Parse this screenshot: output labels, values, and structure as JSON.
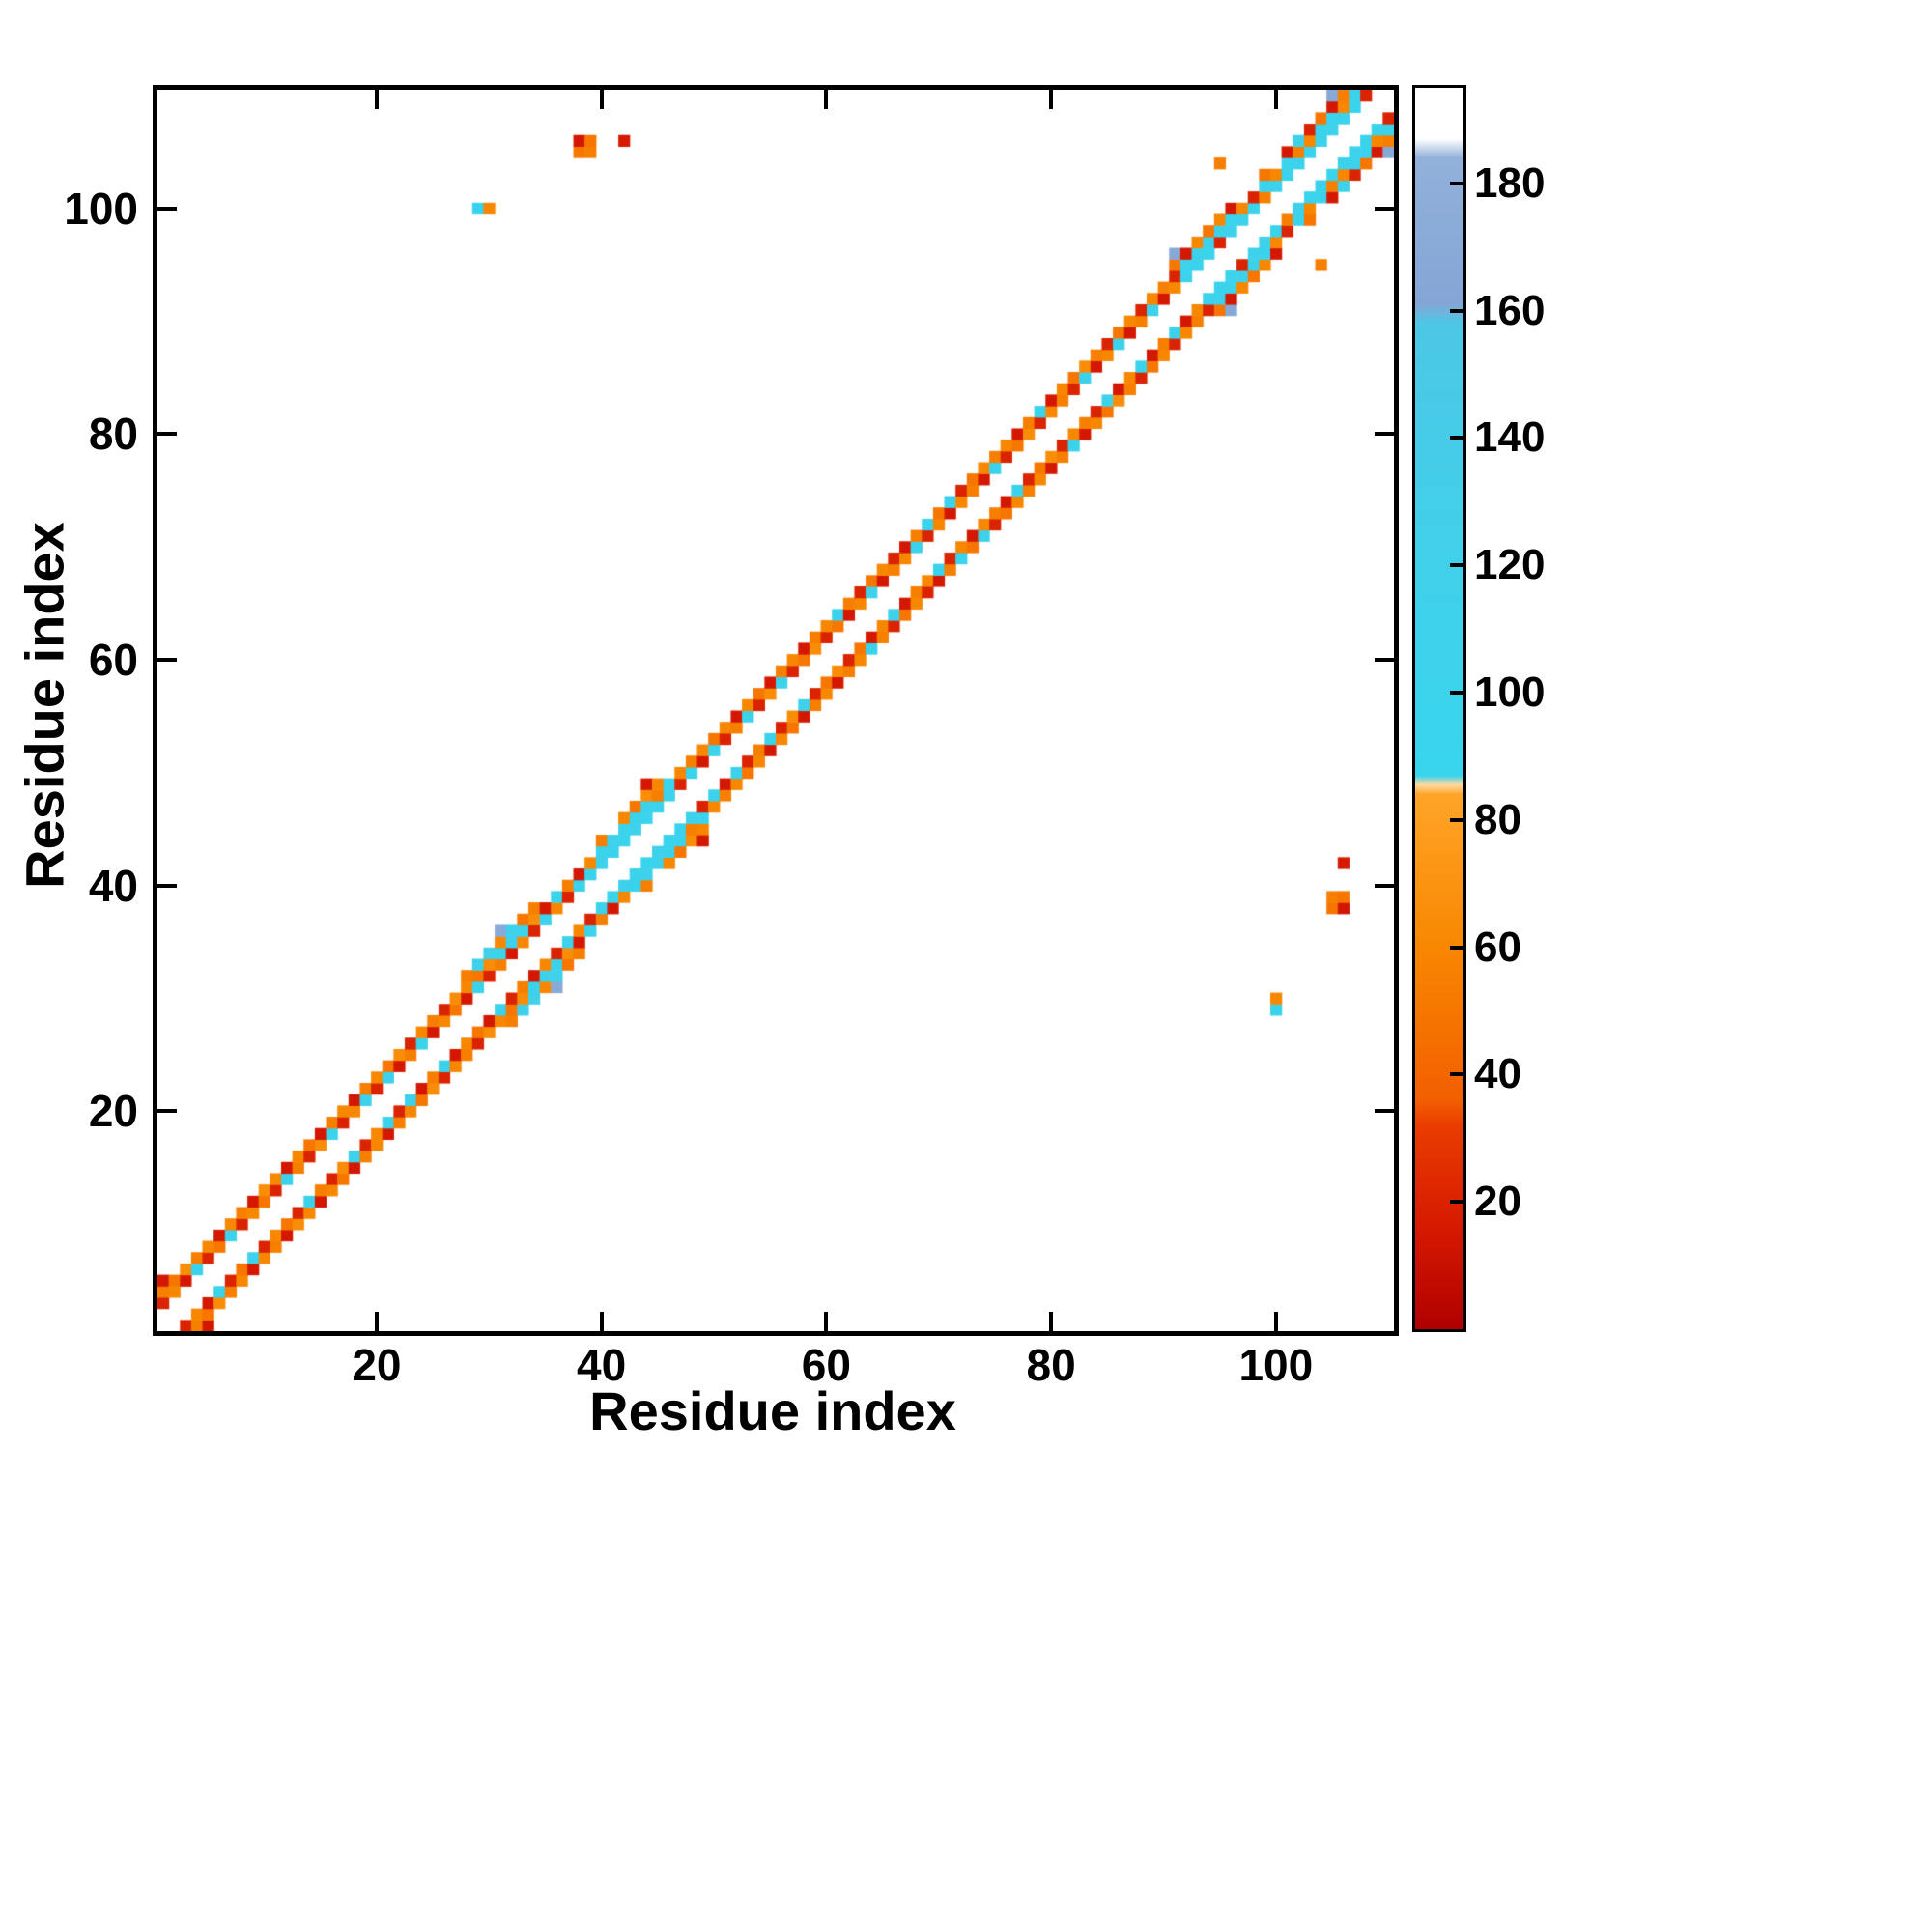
{
  "chart_data": {
    "type": "heatmap",
    "title": "",
    "xlabel": "Residue index",
    "ylabel": "Residue index",
    "x_range": [
      0.5,
      110.5
    ],
    "y_range": [
      0.5,
      110.5
    ],
    "x_ticks": [
      20,
      40,
      60,
      80,
      100
    ],
    "y_ticks": [
      20,
      40,
      60,
      80,
      100
    ],
    "grid": false,
    "background_color": "#ffffff",
    "symmetric": true,
    "colorbar": {
      "range": [
        0,
        195
      ],
      "ticks": [
        20,
        40,
        60,
        80,
        100,
        120,
        140,
        160,
        180
      ],
      "stops": [
        [
          0,
          "#b00000"
        ],
        [
          15,
          "#d41800"
        ],
        [
          32,
          "#ea3c00"
        ],
        [
          36,
          "#f25f00"
        ],
        [
          60,
          "#f88700"
        ],
        [
          84,
          "#ffa428"
        ],
        [
          85.5,
          "#ffd9a0"
        ],
        [
          87,
          "#38d4ee"
        ],
        [
          120,
          "#40d0ea"
        ],
        [
          158,
          "#4cc8e6"
        ],
        [
          161,
          "#84a6d6"
        ],
        [
          184,
          "#92b0da"
        ],
        [
          187,
          "#ffffff"
        ],
        [
          195,
          "#ffffff"
        ]
      ]
    },
    "points": [
      [
        1,
        3,
        20
      ],
      [
        1,
        4,
        55
      ],
      [
        1,
        5,
        15
      ],
      [
        2,
        4,
        60
      ],
      [
        2,
        5,
        50
      ],
      [
        3,
        5,
        15
      ],
      [
        3,
        6,
        65
      ],
      [
        4,
        6,
        100
      ],
      [
        4,
        7,
        55
      ],
      [
        5,
        7,
        20
      ],
      [
        5,
        8,
        60
      ],
      [
        6,
        8,
        50
      ],
      [
        6,
        9,
        15
      ],
      [
        7,
        9,
        110
      ],
      [
        7,
        10,
        60
      ],
      [
        8,
        10,
        20
      ],
      [
        8,
        11,
        55
      ],
      [
        9,
        11,
        60
      ],
      [
        9,
        12,
        15
      ],
      [
        10,
        12,
        50
      ],
      [
        10,
        13,
        65
      ],
      [
        11,
        13,
        20
      ],
      [
        11,
        14,
        60
      ],
      [
        12,
        14,
        105
      ],
      [
        12,
        15,
        15
      ],
      [
        13,
        15,
        55
      ],
      [
        13,
        16,
        60
      ],
      [
        14,
        16,
        20
      ],
      [
        14,
        17,
        50
      ],
      [
        15,
        17,
        65
      ],
      [
        15,
        18,
        15
      ],
      [
        16,
        18,
        100
      ],
      [
        16,
        19,
        55
      ],
      [
        17,
        19,
        20
      ],
      [
        17,
        20,
        60
      ],
      [
        18,
        20,
        60
      ],
      [
        18,
        21,
        15
      ],
      [
        19,
        21,
        105
      ],
      [
        19,
        22,
        55
      ],
      [
        20,
        22,
        20
      ],
      [
        20,
        23,
        60
      ],
      [
        21,
        23,
        110
      ],
      [
        21,
        24,
        50
      ],
      [
        22,
        24,
        15
      ],
      [
        22,
        25,
        65
      ],
      [
        23,
        25,
        55
      ],
      [
        23,
        26,
        20
      ],
      [
        24,
        26,
        100
      ],
      [
        24,
        27,
        60
      ],
      [
        25,
        27,
        15
      ],
      [
        25,
        28,
        55
      ],
      [
        26,
        28,
        60
      ],
      [
        26,
        29,
        20
      ],
      [
        27,
        29,
        50
      ],
      [
        27,
        30,
        65
      ],
      [
        28,
        30,
        15
      ],
      [
        28,
        31,
        60
      ],
      [
        28,
        32,
        55
      ],
      [
        29,
        31,
        100
      ],
      [
        29,
        32,
        50
      ],
      [
        29,
        33,
        110
      ],
      [
        30,
        32,
        20
      ],
      [
        30,
        33,
        65
      ],
      [
        30,
        34,
        120
      ],
      [
        31,
        33,
        55
      ],
      [
        31,
        34,
        95
      ],
      [
        31,
        35,
        60
      ],
      [
        31,
        36,
        170
      ],
      [
        32,
        34,
        15
      ],
      [
        32,
        35,
        105
      ],
      [
        32,
        36,
        115
      ],
      [
        33,
        35,
        60
      ],
      [
        33,
        36,
        100
      ],
      [
        33,
        37,
        50
      ],
      [
        34,
        36,
        20
      ],
      [
        34,
        37,
        65
      ],
      [
        34,
        38,
        55
      ],
      [
        35,
        37,
        110
      ],
      [
        35,
        38,
        15
      ],
      [
        36,
        38,
        60
      ],
      [
        36,
        39,
        100
      ],
      [
        37,
        39,
        20
      ],
      [
        37,
        40,
        55
      ],
      [
        38,
        40,
        105
      ],
      [
        38,
        41,
        15
      ],
      [
        39,
        41,
        100
      ],
      [
        39,
        42,
        60
      ],
      [
        40,
        42,
        110
      ],
      [
        40,
        43,
        95
      ],
      [
        40,
        44,
        55
      ],
      [
        41,
        43,
        100
      ],
      [
        41,
        44,
        115
      ],
      [
        42,
        44,
        95
      ],
      [
        42,
        45,
        105
      ],
      [
        42,
        46,
        60
      ],
      [
        43,
        45,
        110
      ],
      [
        43,
        46,
        100
      ],
      [
        43,
        47,
        50
      ],
      [
        44,
        46,
        95
      ],
      [
        44,
        47,
        105
      ],
      [
        44,
        48,
        65
      ],
      [
        44,
        49,
        15
      ],
      [
        45,
        47,
        100
      ],
      [
        45,
        48,
        55
      ],
      [
        45,
        49,
        60
      ],
      [
        46,
        48,
        110
      ],
      [
        46,
        49,
        95
      ],
      [
        47,
        49,
        20
      ],
      [
        47,
        50,
        60
      ],
      [
        48,
        50,
        100
      ],
      [
        48,
        51,
        55
      ],
      [
        49,
        51,
        15
      ],
      [
        49,
        52,
        60
      ],
      [
        50,
        52,
        105
      ],
      [
        50,
        53,
        50
      ],
      [
        51,
        53,
        20
      ],
      [
        51,
        54,
        60
      ],
      [
        52,
        54,
        55
      ],
      [
        52,
        55,
        15
      ],
      [
        53,
        55,
        100
      ],
      [
        53,
        56,
        60
      ],
      [
        54,
        56,
        20
      ],
      [
        54,
        57,
        50
      ],
      [
        55,
        57,
        65
      ],
      [
        55,
        58,
        15
      ],
      [
        56,
        58,
        110
      ],
      [
        56,
        59,
        55
      ],
      [
        57,
        59,
        20
      ],
      [
        57,
        60,
        60
      ],
      [
        58,
        60,
        50
      ],
      [
        58,
        61,
        15
      ],
      [
        59,
        61,
        65
      ],
      [
        59,
        62,
        55
      ],
      [
        60,
        62,
        20
      ],
      [
        60,
        63,
        60
      ],
      [
        61,
        63,
        50
      ],
      [
        61,
        64,
        100
      ],
      [
        62,
        64,
        15
      ],
      [
        62,
        65,
        55
      ],
      [
        63,
        65,
        60
      ],
      [
        63,
        66,
        20
      ],
      [
        64,
        66,
        105
      ],
      [
        64,
        67,
        50
      ],
      [
        65,
        67,
        15
      ],
      [
        65,
        68,
        60
      ],
      [
        66,
        68,
        55
      ],
      [
        66,
        69,
        20
      ],
      [
        67,
        69,
        60
      ],
      [
        67,
        70,
        15
      ],
      [
        68,
        70,
        100
      ],
      [
        68,
        71,
        55
      ],
      [
        69,
        71,
        20
      ],
      [
        69,
        72,
        95
      ],
      [
        70,
        72,
        60
      ],
      [
        70,
        73,
        50
      ],
      [
        71,
        73,
        15
      ],
      [
        71,
        74,
        105
      ],
      [
        72,
        74,
        60
      ],
      [
        72,
        75,
        20
      ],
      [
        73,
        75,
        55
      ],
      [
        73,
        76,
        50
      ],
      [
        74,
        76,
        15
      ],
      [
        74,
        77,
        60
      ],
      [
        75,
        77,
        100
      ],
      [
        75,
        78,
        55
      ],
      [
        76,
        78,
        20
      ],
      [
        76,
        79,
        60
      ],
      [
        77,
        79,
        50
      ],
      [
        77,
        80,
        15
      ],
      [
        78,
        80,
        65
      ],
      [
        78,
        81,
        55
      ],
      [
        79,
        81,
        20
      ],
      [
        79,
        82,
        100
      ],
      [
        80,
        82,
        60
      ],
      [
        80,
        83,
        15
      ],
      [
        81,
        83,
        55
      ],
      [
        81,
        84,
        60
      ],
      [
        82,
        84,
        20
      ],
      [
        82,
        85,
        50
      ],
      [
        83,
        85,
        110
      ],
      [
        83,
        86,
        65
      ],
      [
        84,
        86,
        15
      ],
      [
        84,
        87,
        55
      ],
      [
        85,
        87,
        60
      ],
      [
        85,
        88,
        20
      ],
      [
        86,
        88,
        100
      ],
      [
        86,
        89,
        50
      ],
      [
        87,
        89,
        15
      ],
      [
        87,
        90,
        60
      ],
      [
        88,
        90,
        55
      ],
      [
        88,
        91,
        20
      ],
      [
        89,
        91,
        105
      ],
      [
        89,
        92,
        60
      ],
      [
        90,
        92,
        15
      ],
      [
        90,
        93,
        55
      ],
      [
        91,
        93,
        60
      ],
      [
        91,
        94,
        20
      ],
      [
        91,
        95,
        50
      ],
      [
        91,
        96,
        168
      ],
      [
        92,
        94,
        100
      ],
      [
        92,
        95,
        110
      ],
      [
        92,
        96,
        15
      ],
      [
        93,
        95,
        95
      ],
      [
        93,
        96,
        105
      ],
      [
        93,
        97,
        60
      ],
      [
        94,
        96,
        100
      ],
      [
        94,
        97,
        115
      ],
      [
        94,
        98,
        50
      ],
      [
        95,
        97,
        20
      ],
      [
        95,
        98,
        100
      ],
      [
        95,
        99,
        60
      ],
      [
        96,
        98,
        110
      ],
      [
        96,
        99,
        95
      ],
      [
        96,
        100,
        15
      ],
      [
        97,
        99,
        105
      ],
      [
        97,
        100,
        60
      ],
      [
        98,
        100,
        100
      ],
      [
        98,
        101,
        20
      ],
      [
        99,
        101,
        55
      ],
      [
        99,
        102,
        95
      ],
      [
        99,
        103,
        50
      ],
      [
        100,
        102,
        110
      ],
      [
        100,
        103,
        60
      ],
      [
        101,
        103,
        95
      ],
      [
        101,
        104,
        105
      ],
      [
        101,
        105,
        15
      ],
      [
        102,
        104,
        100
      ],
      [
        102,
        105,
        55
      ],
      [
        102,
        106,
        110
      ],
      [
        103,
        105,
        95
      ],
      [
        103,
        106,
        60
      ],
      [
        103,
        107,
        20
      ],
      [
        104,
        106,
        105
      ],
      [
        104,
        107,
        100
      ],
      [
        104,
        108,
        50
      ],
      [
        105,
        107,
        110
      ],
      [
        105,
        108,
        95
      ],
      [
        105,
        109,
        15
      ],
      [
        105,
        110,
        168
      ],
      [
        106,
        108,
        100
      ],
      [
        106,
        109,
        60
      ],
      [
        106,
        110,
        55
      ],
      [
        107,
        109,
        95
      ],
      [
        107,
        110,
        105
      ],
      [
        108,
        110,
        20
      ],
      [
        29,
        100,
        95
      ],
      [
        30,
        100,
        60
      ],
      [
        38,
        105,
        50
      ],
      [
        38,
        106,
        14
      ],
      [
        39,
        105,
        55
      ],
      [
        39,
        106,
        50
      ],
      [
        42,
        106,
        16
      ],
      [
        95,
        104,
        55
      ]
    ]
  }
}
